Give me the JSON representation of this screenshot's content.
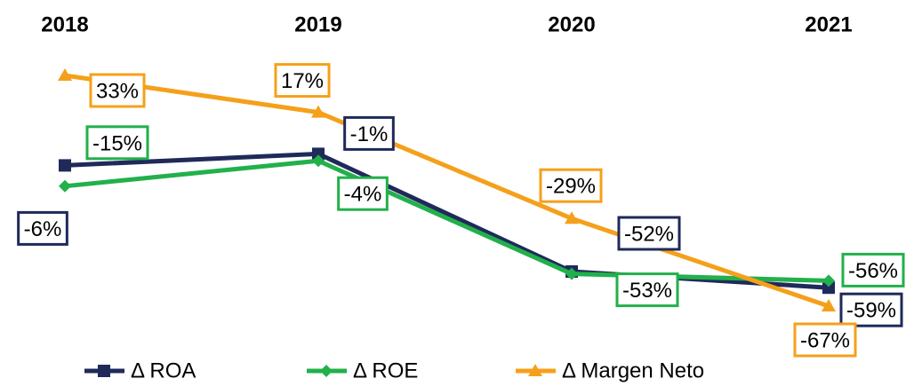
{
  "chart_data": {
    "type": "line",
    "categories": [
      "2018",
      "2019",
      "2020",
      "2021"
    ],
    "series": [
      {
        "name": "Δ ROA",
        "color": "#1f2a5a",
        "marker": "square",
        "values": [
          -6,
          -1,
          -52,
          -59
        ],
        "value_labels": [
          "-6%",
          "-1%",
          "-52%",
          "-59%"
        ]
      },
      {
        "name": "Δ ROE",
        "color": "#22b04b",
        "marker": "diamond",
        "values": [
          -15,
          -4,
          -53,
          -56
        ],
        "value_labels": [
          "-15%",
          "-4%",
          "-53%",
          "-56%"
        ]
      },
      {
        "name": "Δ Margen Neto",
        "color": "#f5a01a",
        "marker": "triangle",
        "values": [
          33,
          17,
          -29,
          -67
        ],
        "value_labels": [
          "33%",
          "17%",
          "-29%",
          "-67%"
        ]
      }
    ],
    "legend": "bottom"
  }
}
